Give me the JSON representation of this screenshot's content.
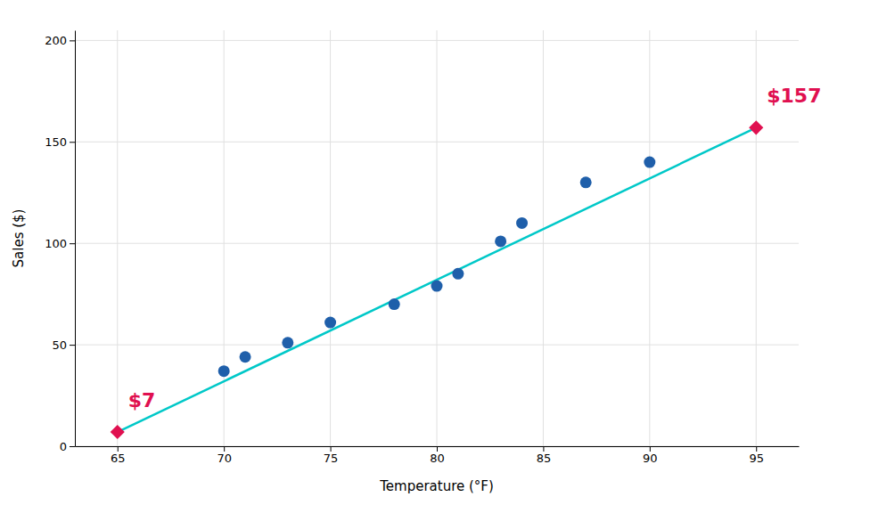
{
  "chart_data": {
    "type": "scatter",
    "xlabel": "Temperature (°F)",
    "ylabel": "Sales ($)",
    "xlim": [
      63,
      97
    ],
    "ylim": [
      0,
      205
    ],
    "xticks": [
      65,
      70,
      75,
      80,
      85,
      90,
      95
    ],
    "yticks": [
      0,
      50,
      100,
      150,
      200
    ],
    "grid": true,
    "series": [
      {
        "type": "line",
        "color": "#00c8c8",
        "line_style": "solid",
        "x": [
          65,
          95
        ],
        "values": [
          7,
          157
        ]
      },
      {
        "type": "scatter",
        "color": "#1f5faa",
        "marker": "circle",
        "x": [
          70,
          71,
          73,
          75,
          78,
          80,
          81,
          83,
          84,
          87,
          90
        ],
        "values": [
          37,
          44,
          51,
          61,
          70,
          79,
          85,
          101,
          110,
          130,
          140
        ]
      },
      {
        "type": "scatter",
        "color": "#e01050",
        "marker": "diamond",
        "x": [
          65,
          95
        ],
        "values": [
          7,
          157
        ],
        "data_labels": true,
        "value_labels": [
          "$7",
          "$157"
        ]
      }
    ]
  }
}
